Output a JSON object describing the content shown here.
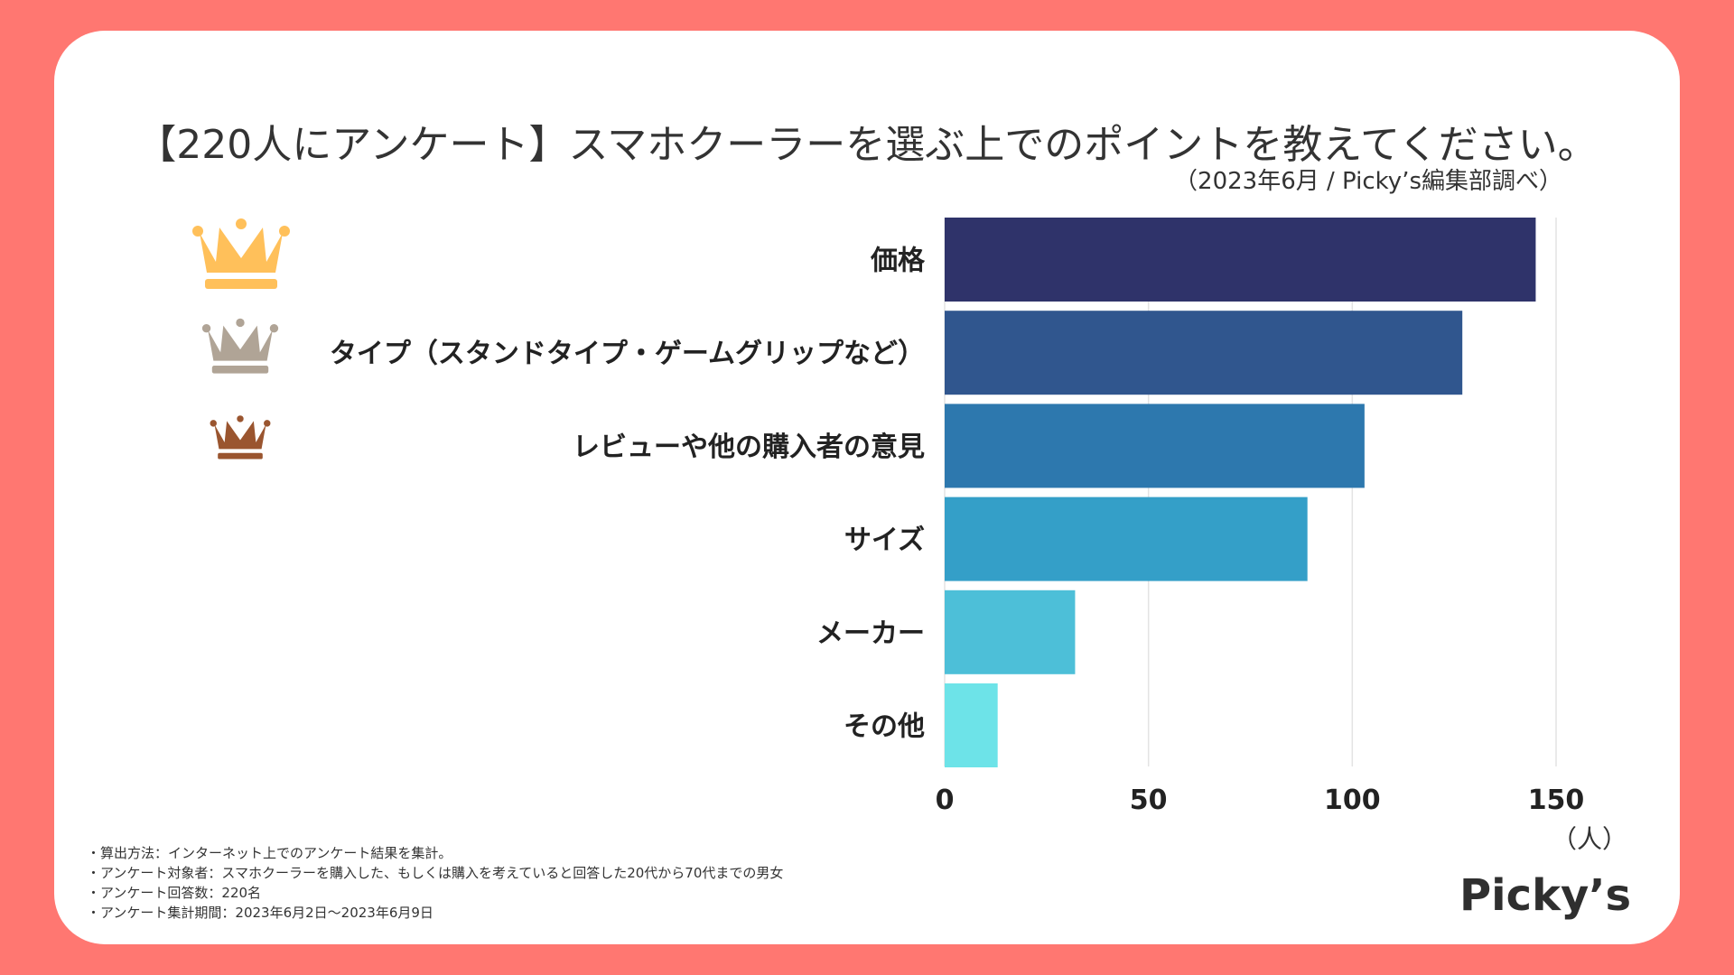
{
  "title": "【220人にアンケート】スマホクーラーを選ぶ上でのポイントを教えてください。",
  "subtitle": "（2023年6月 / Picky’s編集部調べ）",
  "unit_label": "（人）",
  "notes": [
    "・算出方法：インターネット上でのアンケート結果を集計。",
    "・アンケート対象者：スマホクーラーを購入した、もしくは購入を考えていると回答した20代から70代までの男女",
    "・アンケート回答数：220名",
    "・アンケート集計期間：2023年6月2日〜2023年6月9日"
  ],
  "logo": "Picky’s",
  "rank_colors": [
    "#FFC05A",
    "#B0A496",
    "#9A552F"
  ],
  "chart_data": {
    "type": "bar",
    "orientation": "horizontal",
    "title": "【220人にアンケート】スマホクーラーを選ぶ上でのポイントを教えてください。",
    "categories": [
      "価格",
      "タイプ（スタンドタイプ・ゲームグリップなど）",
      "レビューや他の購入者の意見",
      "サイズ",
      "メーカー",
      "その他"
    ],
    "values": [
      145,
      127,
      103,
      89,
      32,
      13
    ],
    "colors": [
      "#2F336A",
      "#30568E",
      "#2D78AE",
      "#349FC8",
      "#4DBFD8",
      "#6DE3E8"
    ],
    "xlim": [
      0,
      150
    ],
    "xticks": [
      0,
      50,
      100,
      150
    ],
    "xlabel": "（人）",
    "grid": true
  }
}
